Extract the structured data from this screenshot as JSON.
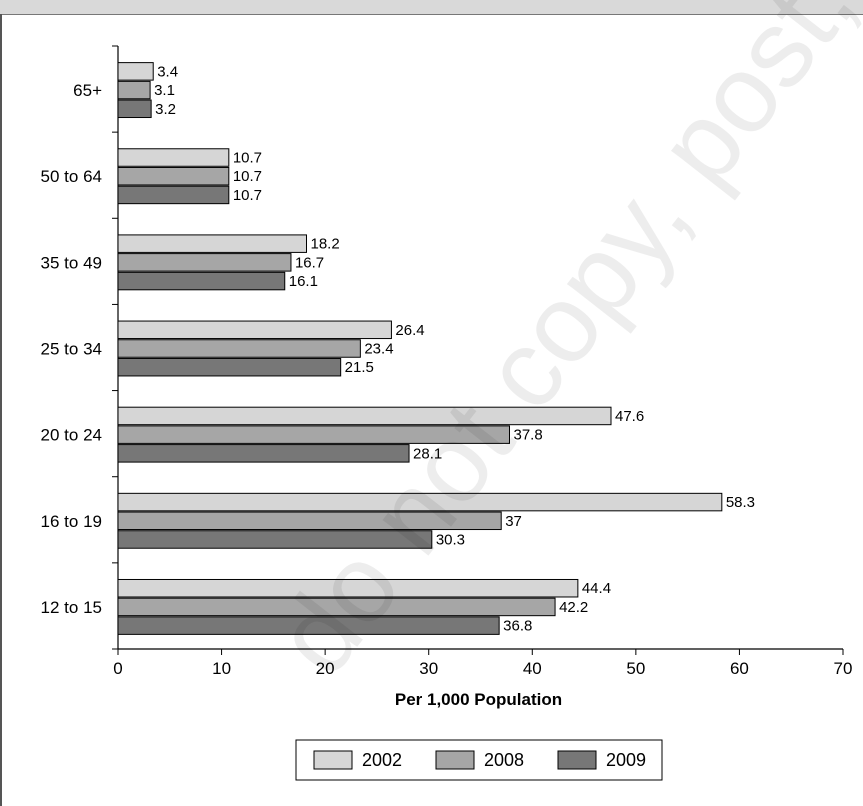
{
  "watermark": "do not copy, post, or distribute",
  "chart_data": {
    "type": "bar",
    "orientation": "horizontal",
    "title": "",
    "xlabel": "Per 1,000 Population",
    "ylabel": "",
    "xlim": [
      0,
      70
    ],
    "xticks": [
      0,
      10,
      20,
      30,
      40,
      50,
      60,
      70
    ],
    "grid": false,
    "legend_position": "bottom",
    "categories": [
      "65+",
      "50 to 64",
      "35 to 49",
      "25 to 34",
      "20 to 24",
      "16 to 19",
      "12 to 15"
    ],
    "series": [
      {
        "name": "2002",
        "color": "#d6d6d6",
        "values": [
          3.4,
          10.7,
          18.2,
          26.4,
          47.6,
          58.3,
          44.4
        ],
        "labels": [
          "3.4",
          "10.7",
          "18.2",
          "26.4",
          "47.6",
          "58.3",
          "44.4"
        ]
      },
      {
        "name": "2008",
        "color": "#a6a6a6",
        "values": [
          3.1,
          10.7,
          16.7,
          23.4,
          37.8,
          37,
          42.2
        ],
        "labels": [
          "3.1",
          "10.7",
          "16.7",
          "23.4",
          "37.8",
          "37",
          "42.2"
        ]
      },
      {
        "name": "2009",
        "color": "#777777",
        "values": [
          3.2,
          10.7,
          16.1,
          21.5,
          28.1,
          30.3,
          36.8
        ],
        "labels": [
          "3.2",
          "10.7",
          "16.1",
          "21.5",
          "28.1",
          "30.3",
          "36.8"
        ]
      }
    ]
  }
}
